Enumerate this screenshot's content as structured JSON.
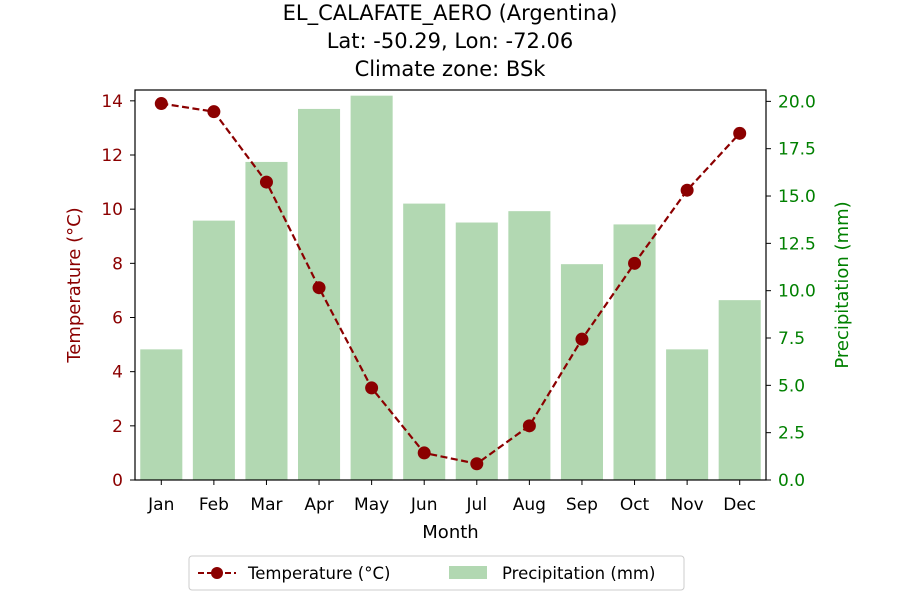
{
  "chart_data": {
    "type": "bar+line",
    "title_lines": [
      "EL_CALAFATE_AERO (Argentina)",
      "Lat: -50.29, Lon: -72.06",
      "Climate zone: BSk"
    ],
    "xlabel": "Month",
    "categories": [
      "Jan",
      "Feb",
      "Mar",
      "Apr",
      "May",
      "Jun",
      "Jul",
      "Aug",
      "Sep",
      "Oct",
      "Nov",
      "Dec"
    ],
    "temperature": {
      "name": "Temperature (°C)",
      "axis_label": "Temperature (°C)",
      "color": "#8b0000",
      "ylim": [
        0,
        14.4
      ],
      "ticks": [
        0,
        2,
        4,
        6,
        8,
        10,
        12,
        14
      ],
      "values": [
        13.9,
        13.6,
        11.0,
        7.1,
        3.4,
        1.0,
        0.6,
        2.0,
        5.2,
        8.0,
        10.7,
        12.8
      ]
    },
    "precipitation": {
      "name": "Precipitation (mm)",
      "axis_label": "Precipitation (mm)",
      "color": "#b2d8b2",
      "axis_color": "#008000",
      "ylim": [
        0,
        20.6
      ],
      "ticks": [
        "0.0",
        "2.5",
        "5.0",
        "7.5",
        "10.0",
        "12.5",
        "15.0",
        "17.5",
        "20.0"
      ],
      "values": [
        6.9,
        13.7,
        16.8,
        19.6,
        20.3,
        14.6,
        13.6,
        14.2,
        11.4,
        13.5,
        6.9,
        9.5
      ]
    },
    "legend_position": "bottom-center"
  }
}
